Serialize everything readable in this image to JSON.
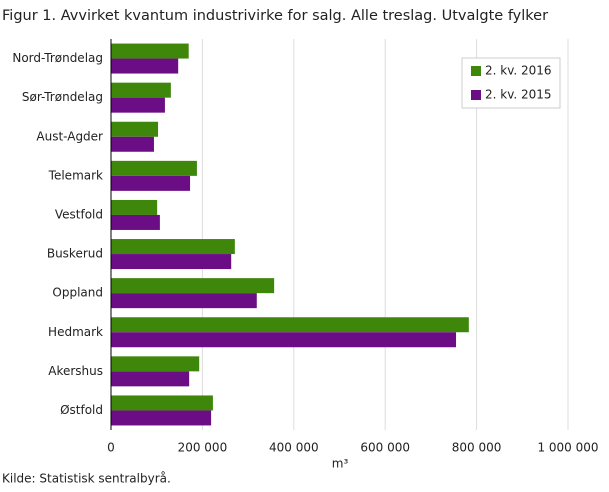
{
  "chart_data": {
    "type": "hbar",
    "title": "Figur 1. Avvirket kvantum industrivirke for salg. Alle treslag. Utvalgte fylker",
    "categories": [
      "Nord-Trøndelag",
      "Sør-Trøndelag",
      "Aust-Agder",
      "Telemark",
      "Vestfold",
      "Buskerud",
      "Oppland",
      "Hedmark",
      "Akershus",
      "Østfold"
    ],
    "series": [
      {
        "name": "2. kv. 2016",
        "color": "#3f870b",
        "values": [
          170000,
          131000,
          103000,
          188000,
          101000,
          271000,
          357000,
          783000,
          193000,
          223000
        ]
      },
      {
        "name": "2. kv. 2015",
        "color": "#6b0d84",
        "values": [
          147000,
          118000,
          94000,
          173000,
          107000,
          263000,
          319000,
          755000,
          171000,
          219000
        ]
      }
    ],
    "xlim": [
      0,
      1000000
    ],
    "xticks": [
      0,
      {
        "value": 200000,
        "label": "200 000"
      },
      {
        "value": 400000,
        "label": "400 000"
      },
      {
        "value": 600000,
        "label": "600 000"
      },
      {
        "value": 800000,
        "label": "800 000"
      },
      {
        "value": 1000000,
        "label": "1 000 000"
      }
    ],
    "xlabel": "m³",
    "grid": true,
    "legend": "top-right",
    "source": "Kilde: Statistisk sentralbyrå."
  }
}
